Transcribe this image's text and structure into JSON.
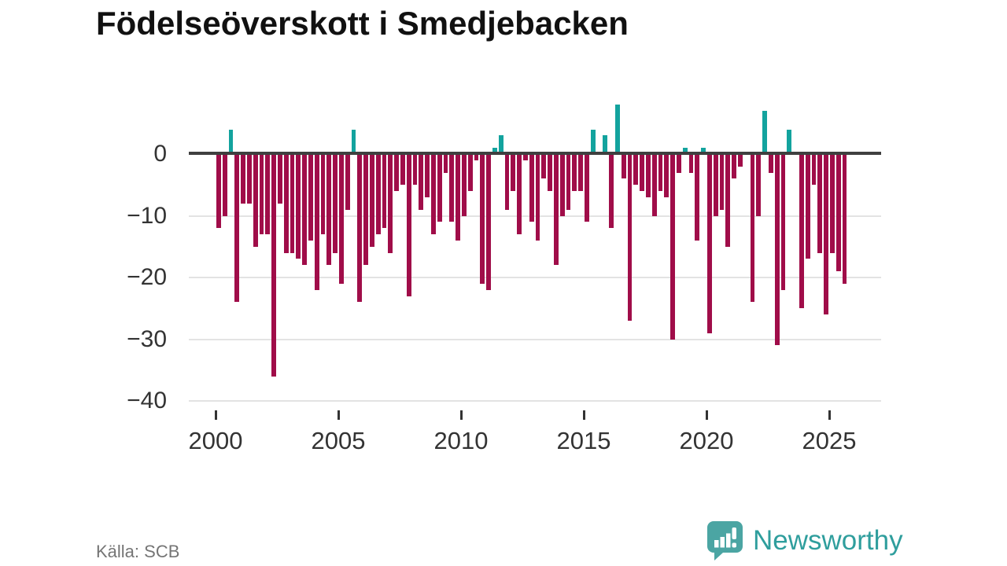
{
  "header": {
    "title": "Födelseöverskott i Smedjebacken"
  },
  "footer": {
    "source": "Källa: SCB",
    "logo_text": "Newsworthy"
  },
  "colors": {
    "negative_bar": "#a00d49",
    "positive_bar": "#13a39e",
    "zero_line": "#3f3f3f",
    "gridline": "#e3e3e3",
    "axis_text": "#333333",
    "source_text": "#757575",
    "logo_teal": "#2f9e9d",
    "logo_bubble": "#4ba5a3",
    "background": "#ffffff"
  },
  "chart_data": {
    "type": "bar",
    "title": "Födelseöverskott i Smedjebacken",
    "source": "Källa: SCB",
    "x_unit": "quarter",
    "start": "2000Q1",
    "end": "2025Q3",
    "ylim": [
      -40,
      8
    ],
    "grid": true,
    "legend": "none",
    "yticks": [
      {
        "value": 0,
        "label": "0"
      },
      {
        "value": -10,
        "label": "−10"
      },
      {
        "value": -20,
        "label": "−20"
      },
      {
        "value": -30,
        "label": "−30"
      },
      {
        "value": -40,
        "label": "−40"
      }
    ],
    "xticks": [
      2000,
      2005,
      2010,
      2015,
      2020,
      2025
    ],
    "series": [
      {
        "year": 2000,
        "values": [
          -12,
          -10,
          4,
          -24
        ]
      },
      {
        "year": 2001,
        "values": [
          -8,
          -8,
          -15,
          -13
        ]
      },
      {
        "year": 2002,
        "values": [
          -13,
          -36,
          -8,
          -16
        ]
      },
      {
        "year": 2003,
        "values": [
          -16,
          -17,
          -18,
          -14
        ]
      },
      {
        "year": 2004,
        "values": [
          -22,
          -13,
          -18,
          -16
        ]
      },
      {
        "year": 2005,
        "values": [
          -21,
          -9,
          4,
          -24
        ]
      },
      {
        "year": 2006,
        "values": [
          -18,
          -15,
          -13,
          -12
        ]
      },
      {
        "year": 2007,
        "values": [
          -16,
          -6,
          -5,
          -23
        ]
      },
      {
        "year": 2008,
        "values": [
          -5,
          -9,
          -7,
          -13
        ]
      },
      {
        "year": 2009,
        "values": [
          -11,
          -3,
          -11,
          -14
        ]
      },
      {
        "year": 2010,
        "values": [
          -10,
          -6,
          -1,
          -21
        ]
      },
      {
        "year": 2011,
        "values": [
          -22,
          1,
          3,
          -9
        ]
      },
      {
        "year": 2012,
        "values": [
          -6,
          -13,
          -1,
          -11
        ]
      },
      {
        "year": 2013,
        "values": [
          -14,
          -4,
          -6,
          -18
        ]
      },
      {
        "year": 2014,
        "values": [
          -10,
          -9,
          -6,
          -6
        ]
      },
      {
        "year": 2015,
        "values": [
          -11,
          4,
          0,
          3
        ]
      },
      {
        "year": 2016,
        "values": [
          -12,
          8,
          -4,
          -27
        ]
      },
      {
        "year": 2017,
        "values": [
          -5,
          -6,
          -7,
          -10
        ]
      },
      {
        "year": 2018,
        "values": [
          -6,
          -7,
          -30,
          -3
        ]
      },
      {
        "year": 2019,
        "values": [
          1,
          -3,
          -14,
          1
        ]
      },
      {
        "year": 2020,
        "values": [
          -29,
          -10,
          -9,
          -15
        ]
      },
      {
        "year": 2021,
        "values": [
          -4,
          -2,
          0,
          -24
        ]
      },
      {
        "year": 2022,
        "values": [
          -10,
          7,
          -3,
          -31
        ]
      },
      {
        "year": 2023,
        "values": [
          -22,
          4,
          0,
          -25
        ]
      },
      {
        "year": 2024,
        "values": [
          -17,
          -5,
          -16,
          -26
        ]
      },
      {
        "year": 2025,
        "values": [
          -16,
          -19,
          -21
        ]
      }
    ]
  }
}
